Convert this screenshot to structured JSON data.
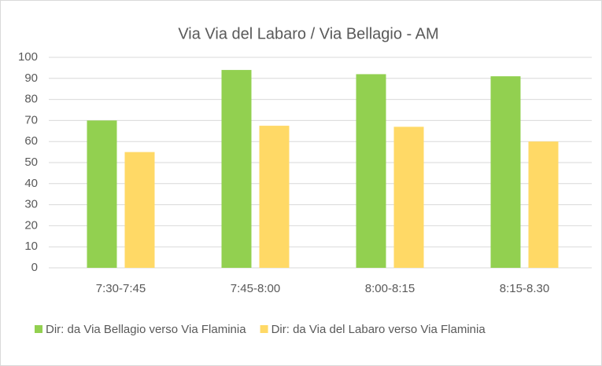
{
  "chart_data": {
    "type": "bar",
    "title": "Via Via del Labaro / Via Bellagio - AM",
    "categories": [
      "7:30-7:45",
      "7:45-8:00",
      "8:00-8:15",
      "8:15-8.30"
    ],
    "series": [
      {
        "name": "Dir: da Via Bellagio verso Via Flaminia",
        "color": "#92d050",
        "values": [
          70,
          94,
          92,
          91
        ]
      },
      {
        "name": "Dir: da Via del Labaro verso Via Flaminia",
        "color": "#ffd966",
        "values": [
          55,
          67.5,
          67,
          60
        ]
      }
    ],
    "ylim": [
      0,
      100
    ],
    "yticks": [
      0,
      10,
      20,
      30,
      40,
      50,
      60,
      70,
      80,
      90,
      100
    ],
    "grid": true,
    "legend": "bottom"
  }
}
